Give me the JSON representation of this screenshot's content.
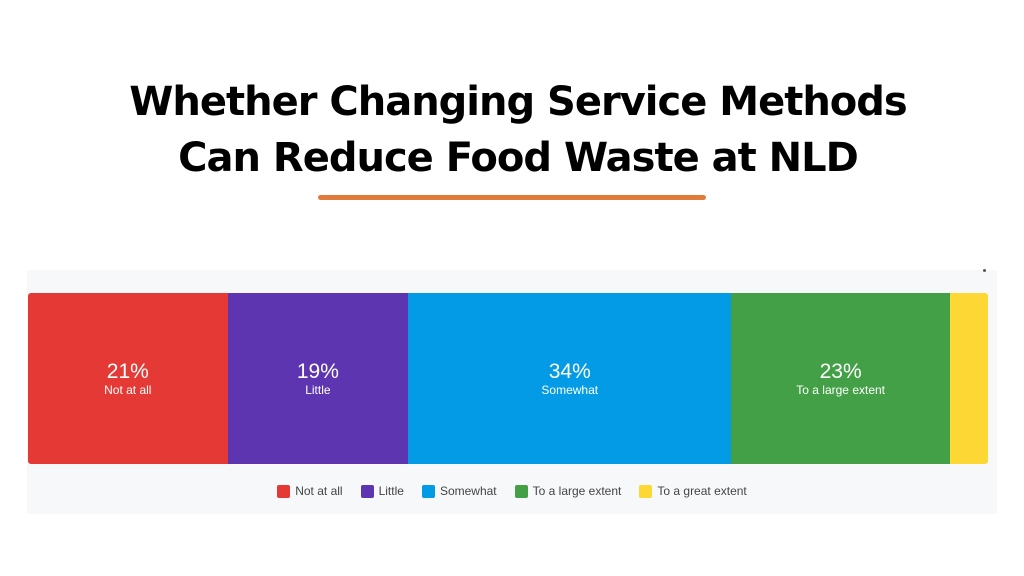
{
  "page": {
    "title_line1": "Whether Changing Service Methods",
    "title_line2": "Can Reduce Food Waste at NLD",
    "accent_color": "#e07b39"
  },
  "chart_data": {
    "type": "bar",
    "orientation": "horizontal-stacked-100",
    "title": "Whether Changing Service Methods Can Reduce Food Waste at NLD",
    "categories": [
      "Not at all",
      "Little",
      "Somewhat",
      "To a large extent",
      "To a great extent"
    ],
    "values": [
      21,
      19,
      34,
      23,
      4
    ],
    "labels": [
      "21%",
      "19%",
      "34%",
      "23%",
      ""
    ],
    "colors": [
      "#e53935",
      "#5e35b1",
      "#039be5",
      "#43a047",
      "#fdd835"
    ],
    "legend": "bottom-center",
    "grid": false
  }
}
